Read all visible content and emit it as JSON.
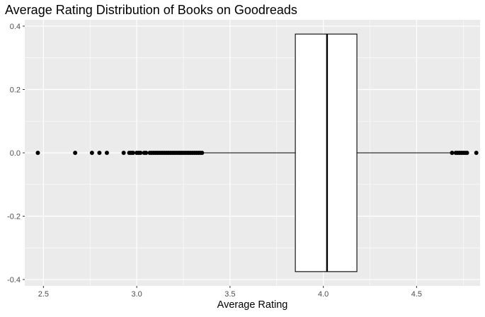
{
  "chart_data": {
    "type": "boxplot",
    "title": "Average Rating Distribution of Books on Goodreads",
    "xlabel": "Average Rating",
    "ylabel": "",
    "xlim": [
      2.4,
      4.84
    ],
    "ylim": [
      -0.42,
      0.42
    ],
    "x_ticks": [
      2.5,
      3.0,
      3.5,
      4.0,
      4.5
    ],
    "x_tick_labels": [
      "2.5",
      "3.0",
      "3.5",
      "4.0",
      "4.5"
    ],
    "y_ticks": [
      -0.4,
      -0.2,
      0.0,
      0.2,
      0.4
    ],
    "y_tick_labels": [
      "-0.4",
      "-0.2",
      "0.0",
      "0.2",
      "0.4"
    ],
    "orientation": "horizontal",
    "grid": true,
    "box": {
      "q1": 3.85,
      "median": 4.02,
      "q3": 4.18,
      "whisker_low": 3.35,
      "whisker_high": 4.68,
      "y_center": 0.0,
      "half_height": 0.375
    },
    "outliers": [
      2.47,
      2.67,
      2.76,
      2.8,
      2.84,
      2.93,
      2.96,
      2.97,
      2.98,
      3.0,
      3.01,
      3.02,
      3.04,
      3.05,
      3.07,
      3.08,
      3.09,
      3.1,
      3.11,
      3.12,
      3.13,
      3.14,
      3.15,
      3.16,
      3.17,
      3.18,
      3.19,
      3.2,
      3.21,
      3.22,
      3.23,
      3.24,
      3.25,
      3.26,
      3.27,
      3.28,
      3.29,
      3.3,
      3.31,
      3.32,
      3.33,
      3.34,
      3.35,
      4.69,
      4.71,
      4.72,
      4.73,
      4.74,
      4.75,
      4.76,
      4.77,
      4.82
    ],
    "colors": {
      "panel": "#ebebeb",
      "grid_major": "#ffffff",
      "box_fill": "#ffffff",
      "stroke": "#000000",
      "tick_text": "#4d4d4d"
    }
  }
}
